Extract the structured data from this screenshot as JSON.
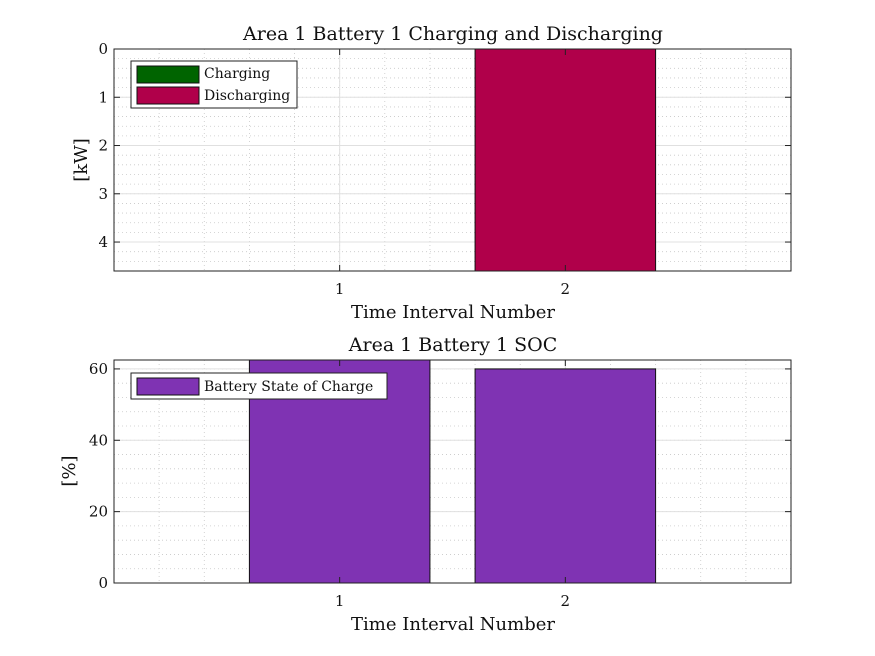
{
  "chart_data": [
    {
      "type": "bar",
      "title": "Area 1 Battery 1 Charging and Discharging",
      "xlabel": "Time Interval Number",
      "ylabel": "[kW]",
      "categories": [
        "1",
        "2"
      ],
      "xlim": [
        0,
        3
      ],
      "ylim": [
        0,
        4.6
      ],
      "y_reversed": true,
      "yticks": [
        "0",
        "1",
        "2",
        "3",
        "4"
      ],
      "grid": true,
      "minor_grid": true,
      "legend_position": "top-left",
      "series": [
        {
          "name": "Charging",
          "color": "#006400",
          "values": [
            0,
            0
          ]
        },
        {
          "name": "Discharging",
          "color": "#B0004A",
          "values": [
            0,
            4.6
          ]
        }
      ]
    },
    {
      "type": "bar",
      "title": "Area 1 Battery 1 SOC",
      "xlabel": "Time Interval Number",
      "ylabel": "[%]",
      "categories": [
        "1",
        "2"
      ],
      "xlim": [
        0,
        3
      ],
      "ylim": [
        0,
        62.5
      ],
      "yticks": [
        "0",
        "20",
        "40",
        "60"
      ],
      "grid": true,
      "minor_grid": true,
      "legend_position": "top-left",
      "series": [
        {
          "name": "Battery State of Charge",
          "color": "#7F33B3",
          "values": [
            62.5,
            60
          ]
        }
      ]
    }
  ]
}
